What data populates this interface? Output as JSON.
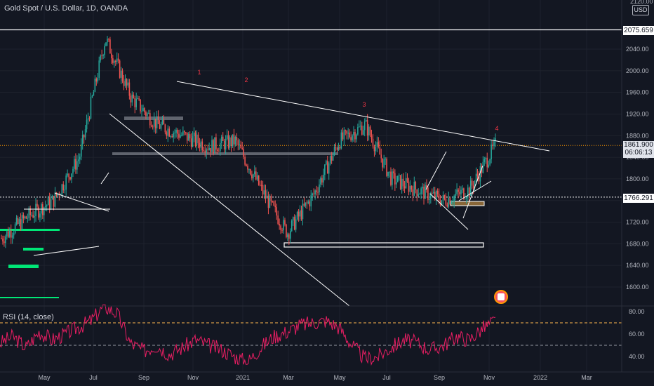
{
  "header": {
    "title": "Gold Spot / U.S. Dollar, 1D, OANDA",
    "currency": "USD",
    "top_partial_label": "2120.00"
  },
  "rsi_panel": {
    "title": "RSI (14, close)",
    "axis_labels": [
      "80.00",
      "60.00",
      "40.00"
    ]
  },
  "price_badges": {
    "resistance": "2075.659",
    "current_price": "1861.900",
    "countdown": "06:06:13",
    "support": "1766.291"
  },
  "wave_labels": [
    "1",
    "2",
    "3",
    "4"
  ],
  "colors": {
    "background": "#131722",
    "grid": "#1e222d",
    "up_candle": "#26a69a",
    "down_candle": "#ef5350",
    "rsi_line": "#e91e63",
    "trendline": "#ffffff",
    "support_zone": "#00e676",
    "rsi_upper_band": "#ffb74d",
    "rsi_lower_band": "#9598a1",
    "wave_label": "#f23645",
    "price_line": "#ff9800"
  },
  "chart_data": [
    {
      "type": "candlestick",
      "title": "Gold Spot / U.S. Dollar, 1D, OANDA",
      "y_ticks": [
        1600,
        1640,
        1680,
        1720,
        1760,
        1800,
        1840,
        1880,
        1920,
        1960,
        2000,
        2040
      ],
      "ylim": [
        1580,
        2095
      ],
      "x_ticks": [
        "May",
        "Jul",
        "Sep",
        "Nov",
        "2021",
        "Mar",
        "May",
        "Jul",
        "Sep",
        "Nov",
        "2022",
        "Mar"
      ],
      "key_levels": {
        "resistance": 2075.659,
        "current": 1861.9,
        "support": 1766.291
      },
      "approx_close_path": [
        {
          "x": "Apr 2020",
          "close": 1690
        },
        {
          "x": "May 2020",
          "close": 1730
        },
        {
          "x": "Jun 2020",
          "close": 1760
        },
        {
          "x": "Jul 2020",
          "close": 1840
        },
        {
          "x": "Aug 2020",
          "close": 2060
        },
        {
          "x": "Sep 2020",
          "close": 1950
        },
        {
          "x": "Oct 2020",
          "close": 1900
        },
        {
          "x": "Nov 2020",
          "close": 1880
        },
        {
          "x": "Dec 2020",
          "close": 1860
        },
        {
          "x": "Jan 2021",
          "close": 1870
        },
        {
          "x": "Feb 2021",
          "close": 1780
        },
        {
          "x": "Mar 2021",
          "close": 1700
        },
        {
          "x": "Apr 2021",
          "close": 1770
        },
        {
          "x": "May 2021",
          "close": 1870
        },
        {
          "x": "Jun 2021",
          "close": 1900
        },
        {
          "x": "Jul 2021",
          "close": 1800
        },
        {
          "x": "Aug 2021",
          "close": 1780
        },
        {
          "x": "Sep 2021",
          "close": 1760
        },
        {
          "x": "Oct 2021",
          "close": 1780
        },
        {
          "x": "Nov 2021",
          "close": 1862
        }
      ]
    },
    {
      "type": "line",
      "title": "RSI (14, close)",
      "y_ticks": [
        40,
        60,
        80
      ],
      "ylim": [
        33,
        86
      ],
      "bands": [
        70,
        50
      ],
      "approx_values": [
        52,
        58,
        48,
        62,
        55,
        60,
        66,
        72,
        85,
        78,
        52,
        45,
        50,
        42,
        48,
        55,
        50,
        46,
        40,
        35,
        48,
        58,
        62,
        68,
        70,
        72,
        66,
        50,
        38,
        40,
        48,
        55,
        52,
        46,
        50,
        58,
        55,
        65,
        72
      ]
    }
  ]
}
